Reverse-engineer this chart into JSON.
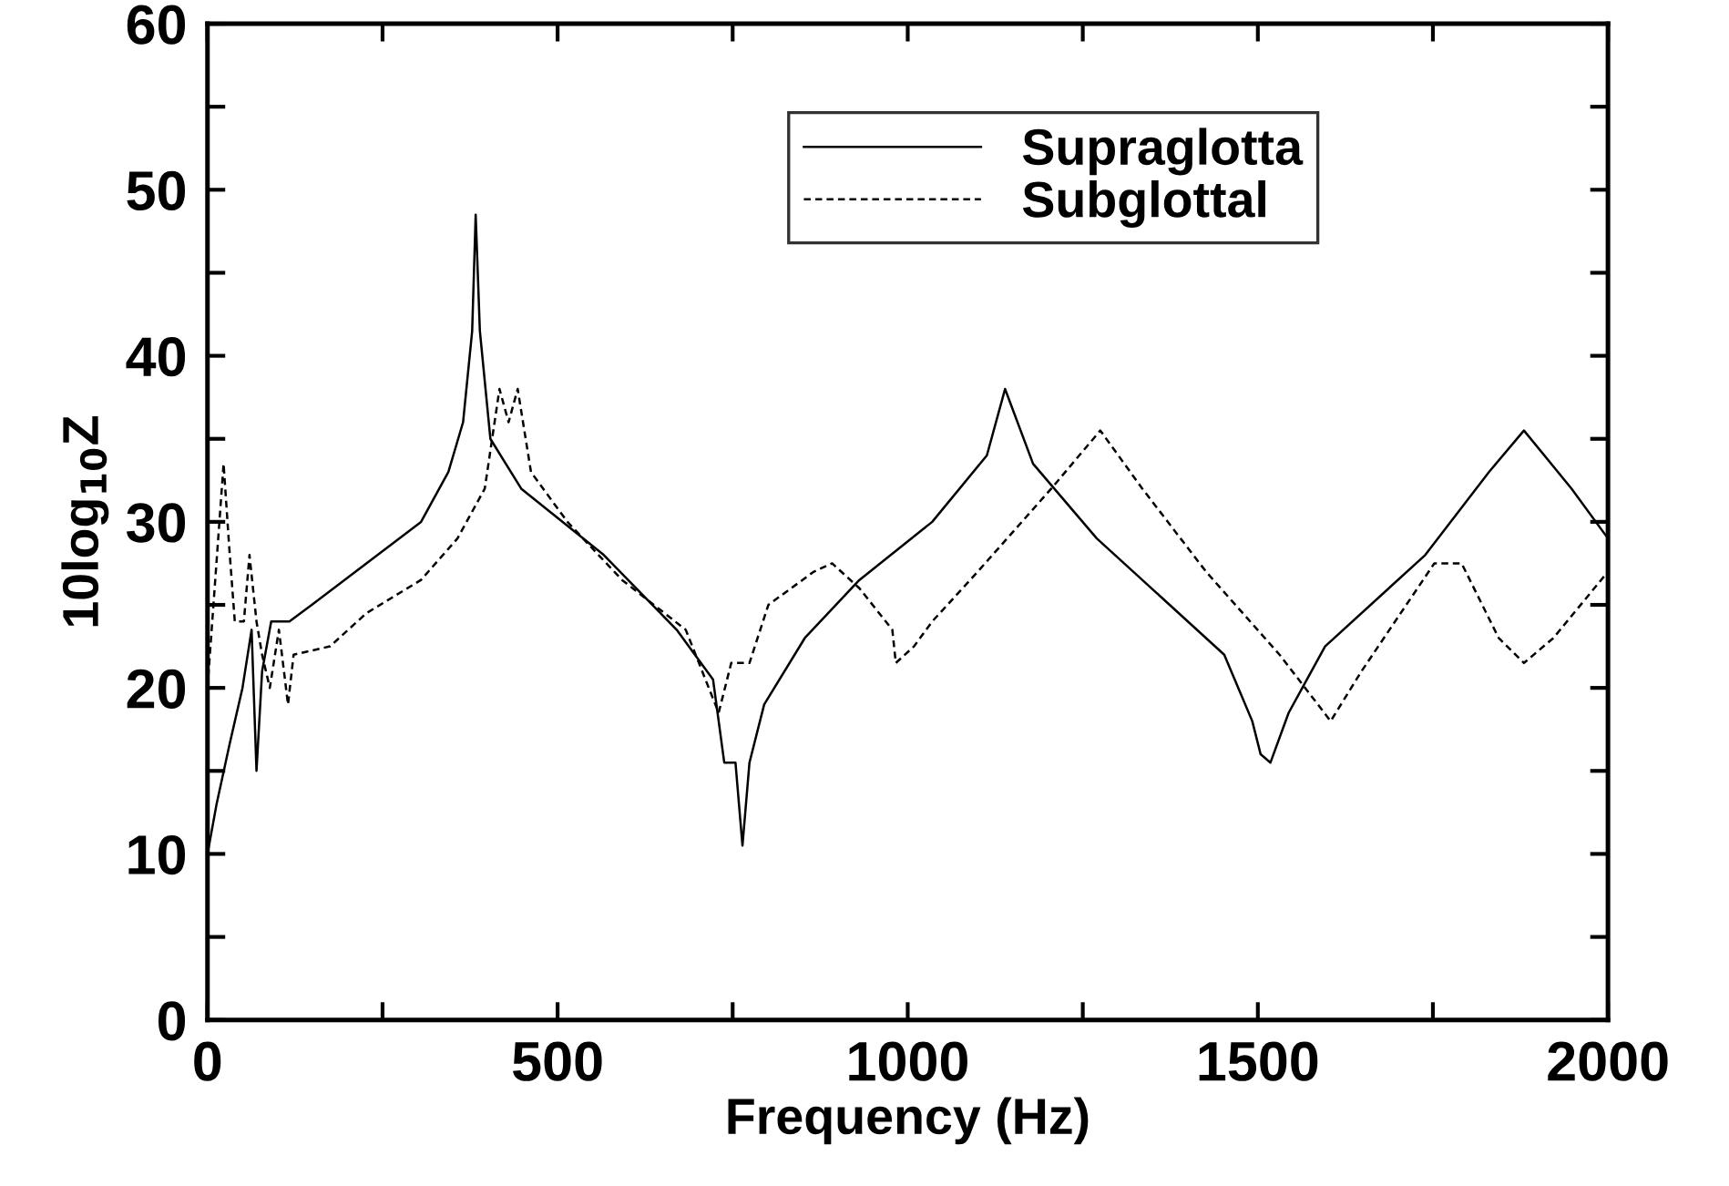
{
  "chart_data": {
    "type": "line",
    "xlabel": "Frequency (Hz)",
    "ylabel": "10log$_{10}$Z",
    "xlim": [
      0,
      2000
    ],
    "ylim": [
      0,
      60
    ],
    "xticks": [
      0,
      {
        "value": 250,
        "label": null
      },
      500,
      {
        "value": 750,
        "label": null
      },
      1000,
      {
        "value": 1250,
        "label": null
      },
      1500,
      {
        "value": 1750,
        "label": null
      },
      2000
    ],
    "yticks": [
      0,
      {
        "value": 5,
        "label": null
      },
      10,
      {
        "value": 15,
        "label": null
      },
      20,
      {
        "value": 25,
        "label": null
      },
      30,
      {
        "value": 35,
        "label": null
      },
      40,
      {
        "value": 45,
        "label": null
      },
      50,
      {
        "value": 55,
        "label": null
      },
      60
    ],
    "grid": false,
    "legend": "top right",
    "marker": "none",
    "series": [
      {
        "name": "Supraglotta",
        "color": "#000000",
        "line_style": "solid",
        "x": [
          0,
          13,
          31,
          50,
          63,
          70,
          78,
          91,
          117,
          149,
          227,
          305,
          344,
          365,
          378,
          383,
          389,
          404,
          448,
          566,
          670,
          722,
          738,
          754,
          764,
          774,
          795,
          853,
          931,
          1035,
          1113,
          1139,
          1179,
          1270,
          1374,
          1452,
          1492,
          1504,
          1518,
          1544,
          1596,
          1739,
          1830,
          1880,
          1948,
          2000
        ],
        "values": [
          10,
          13,
          16.5,
          20,
          23.5,
          15,
          21,
          24,
          24,
          25,
          27.5,
          30,
          33,
          36,
          41.5,
          48.5,
          41.5,
          35,
          32,
          28,
          23.5,
          20.5,
          15.5,
          15.5,
          10.5,
          15.5,
          19,
          23,
          26.5,
          30,
          34,
          38,
          33.5,
          29,
          25,
          22,
          18,
          16,
          15.5,
          18.5,
          22.5,
          28,
          33,
          35.5,
          32,
          29
        ]
      },
      {
        "name": "Subglottal",
        "color": "#000000",
        "line_style": "dashed",
        "x": [
          0,
          23,
          31,
          39,
          52,
          60,
          70,
          78,
          89,
          102,
          115,
          123,
          175,
          227,
          305,
          357,
          396,
          417,
          430,
          443,
          462,
          514,
          592,
          683,
          730,
          748,
          774,
          801,
          866,
          892,
          931,
          978,
          983,
          1009,
          1035,
          1100,
          1205,
          1275,
          1335,
          1426,
          1531,
          1604,
          1648,
          1752,
          1791,
          1844,
          1880,
          1922,
          2000
        ],
        "values": [
          20,
          33.5,
          28.5,
          24,
          24,
          28,
          24,
          22,
          20,
          23.5,
          19,
          22,
          22.5,
          24.5,
          26.5,
          29,
          32,
          38,
          36,
          38,
          33,
          30,
          26.5,
          23.5,
          18.5,
          21.5,
          21.5,
          25,
          27,
          27.5,
          26,
          23.5,
          21.5,
          22.5,
          24,
          27,
          32,
          35.5,
          32,
          27,
          22,
          18,
          21,
          27.5,
          27.5,
          23,
          21.5,
          23,
          27
        ]
      }
    ]
  }
}
